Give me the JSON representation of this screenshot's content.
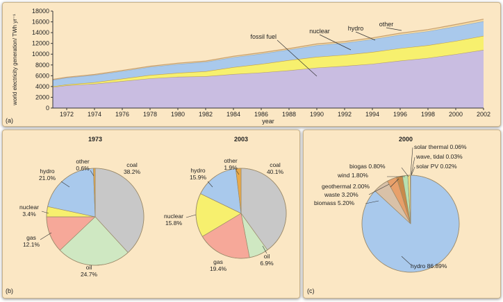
{
  "colors": {
    "background": "#fbe7c4",
    "fossil_fuel": "#c9bde1",
    "nuclear": "#f7f06e",
    "hydro": "#a9c9ec",
    "other": "#f3d9a3",
    "coal": "#c8c8c8",
    "oil": "#cfe8c2",
    "gas": "#f6a899",
    "pie_other": "#e8a94a",
    "biomass": "#d9c1a8",
    "waste": "#e8a06a",
    "geothermal": "#c88a4a",
    "wind": "#b7e0b0",
    "biogas": "#f3e38a",
    "solar_thermal": "#666666",
    "wave_tidal": "#c3a2d8",
    "solar_pv": "#9a6a3a"
  },
  "panel_labels": {
    "a": "(a)",
    "b": "(b)",
    "c": "(c)"
  },
  "chart_data": [
    {
      "type": "area",
      "panel": "(a)",
      "xlabel": "year",
      "ylabel": "world electricity generation/ TWh yr⁻¹",
      "ylim": [
        0,
        18000
      ],
      "xlim": [
        1971,
        2002
      ],
      "x_ticks": [
        1972,
        1974,
        1976,
        1978,
        1980,
        1982,
        1984,
        1986,
        1988,
        1990,
        1992,
        1994,
        1996,
        1998,
        2000,
        2002
      ],
      "y_ticks": [
        0,
        2000,
        4000,
        6000,
        8000,
        10000,
        12000,
        14000,
        16000,
        18000
      ],
      "x": [
        1971,
        1972,
        1974,
        1976,
        1978,
        1980,
        1982,
        1984,
        1986,
        1988,
        1990,
        1992,
        1994,
        1996,
        1998,
        2000,
        2002
      ],
      "stacked": true,
      "series": [
        {
          "name": "fossil fuel",
          "values": [
            3900,
            4200,
            4500,
            5000,
            5500,
            5800,
            5900,
            6300,
            6600,
            7000,
            7500,
            7800,
            8200,
            8800,
            9300,
            10000,
            10800
          ]
        },
        {
          "name": "nuclear",
          "values": [
            120,
            170,
            270,
            450,
            620,
            720,
            910,
            1280,
            1580,
            1880,
            2000,
            2080,
            2200,
            2300,
            2350,
            2450,
            2600
          ]
        },
        {
          "name": "hydro",
          "values": [
            1200,
            1250,
            1350,
            1400,
            1500,
            1650,
            1750,
            1850,
            1900,
            1950,
            2150,
            2200,
            2350,
            2500,
            2600,
            2700,
            2700
          ]
        },
        {
          "name": "other",
          "values": [
            100,
            100,
            120,
            130,
            150,
            160,
            170,
            190,
            200,
            220,
            250,
            260,
            280,
            300,
            320,
            350,
            400
          ]
        }
      ],
      "annotations": [
        "fossil fuel",
        "nuclear",
        "hydro",
        "other"
      ]
    },
    {
      "type": "pie",
      "panel": "(b)",
      "title": "1973",
      "slices": [
        {
          "name": "coal",
          "value": 38.2,
          "label_name": "coal",
          "label_value": "38.2%"
        },
        {
          "name": "oil",
          "value": 24.7,
          "label_name": "oil",
          "label_value": "24.7%"
        },
        {
          "name": "gas",
          "value": 12.1,
          "label_name": "gas",
          "label_value": "12.1%"
        },
        {
          "name": "nuclear",
          "value": 3.4,
          "label_name": "nuclear",
          "label_value": "3.4%"
        },
        {
          "name": "hydro",
          "value": 21.0,
          "label_name": "hydro",
          "label_value": "21.0%"
        },
        {
          "name": "other",
          "value": 0.6,
          "label_name": "other",
          "label_value": "0.6%"
        }
      ]
    },
    {
      "type": "pie",
      "panel": "(b)",
      "title": "2003",
      "slices": [
        {
          "name": "coal",
          "value": 40.1,
          "label_name": "coal",
          "label_value": "40.1%"
        },
        {
          "name": "oil",
          "value": 6.9,
          "label_name": "oil",
          "label_value": "6.9%"
        },
        {
          "name": "gas",
          "value": 19.4,
          "label_name": "gas",
          "label_value": "19.4%"
        },
        {
          "name": "nuclear",
          "value": 15.8,
          "label_name": "nuclear",
          "label_value": "15.8%"
        },
        {
          "name": "hydro",
          "value": 15.9,
          "label_name": "hydro",
          "label_value": "15.9%"
        },
        {
          "name": "other",
          "value": 1.9,
          "label_name": "other",
          "label_value": "1.9%"
        }
      ]
    },
    {
      "type": "pie",
      "panel": "(c)",
      "title": "2000",
      "slices": [
        {
          "name": "hydro",
          "value": 86.89,
          "label": "hydro 86.89%"
        },
        {
          "name": "biomass",
          "value": 5.2,
          "label": "biomass 5.20%"
        },
        {
          "name": "waste",
          "value": 3.2,
          "label": "waste 3.20%"
        },
        {
          "name": "geothermal",
          "value": 2.0,
          "label": "geothermal 2.00%"
        },
        {
          "name": "wind",
          "value": 1.8,
          "label": "wind 1.80%"
        },
        {
          "name": "biogas",
          "value": 0.8,
          "label": "biogas 0.80%"
        },
        {
          "name": "solar thermal",
          "value": 0.06,
          "label": "solar thermal 0.06%"
        },
        {
          "name": "wave, tidal",
          "value": 0.03,
          "label": "wave, tidal 0.03%"
        },
        {
          "name": "solar PV",
          "value": 0.02,
          "label": "solar PV  0.02%"
        }
      ]
    }
  ]
}
